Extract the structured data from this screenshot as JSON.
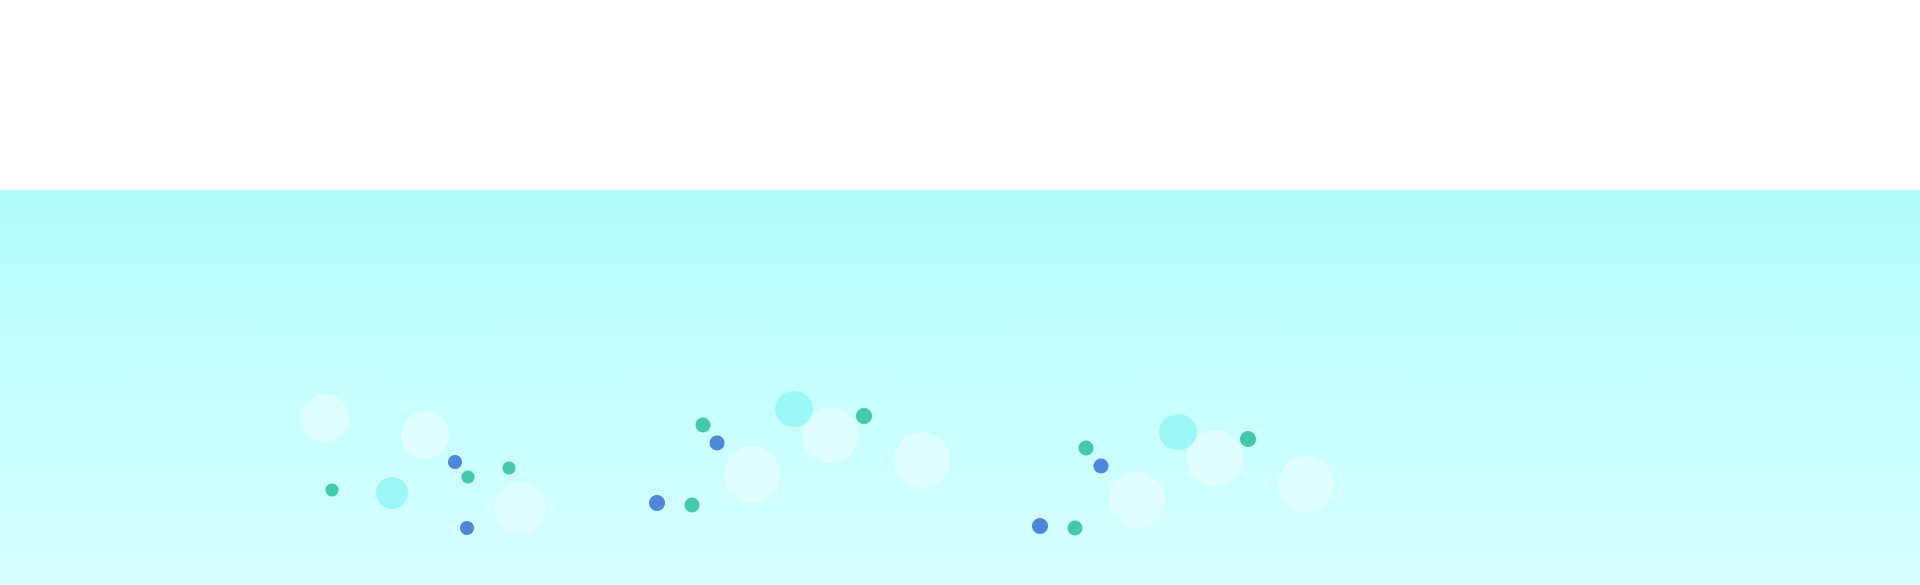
{
  "scene": {
    "colors": {
      "page_background": "#ffffff",
      "water_top": "#b3fefd",
      "water_bottom": "#d8fefe",
      "dot_blue": "#4f88d6",
      "dot_green": "#46c9a8",
      "bubble_cyan": "#9cf8f8",
      "bubble_faint": "#e6fdfd"
    }
  }
}
